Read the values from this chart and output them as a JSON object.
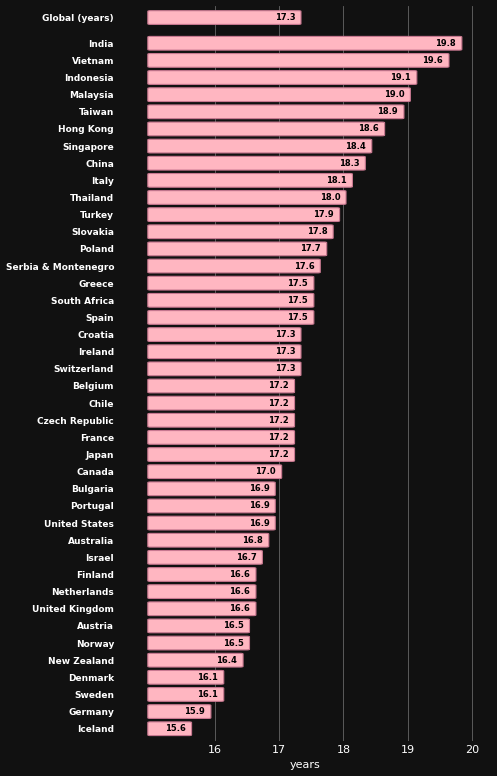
{
  "categories": [
    "Global (years)",
    "India",
    "Vietnam",
    "Indonesia",
    "Malaysia",
    "Taiwan",
    "Hong Kong",
    "Singapore",
    "China",
    "Italy",
    "Thailand",
    "Turkey",
    "Slovakia",
    "Poland",
    "Serbia & Montenegro",
    "Greece",
    "South Africa",
    "Spain",
    "Croatia",
    "Ireland",
    "Switzerland",
    "Belgium",
    "Chile",
    "Czech Republic",
    "France",
    "Japan",
    "Canada",
    "Bulgaria",
    "Portugal",
    "United States",
    "Australia",
    "Israel",
    "Finland",
    "Netherlands",
    "United Kingdom",
    "Austria",
    "Norway",
    "New Zealand",
    "Denmark",
    "Sweden",
    "Germany",
    "Iceland"
  ],
  "values": [
    17.3,
    19.8,
    19.6,
    19.1,
    19.0,
    18.9,
    18.6,
    18.4,
    18.3,
    18.1,
    18.0,
    17.9,
    17.8,
    17.7,
    17.6,
    17.5,
    17.5,
    17.5,
    17.3,
    17.3,
    17.3,
    17.2,
    17.2,
    17.2,
    17.2,
    17.2,
    17.0,
    16.9,
    16.9,
    16.9,
    16.8,
    16.7,
    16.6,
    16.6,
    16.6,
    16.5,
    16.5,
    16.4,
    16.1,
    16.1,
    15.9,
    15.6
  ],
  "bar_color": "#ffb6c1",
  "bar_edge_color": "#c87890",
  "background_color": "#111111",
  "text_color": "#ffffff",
  "label_color": "#000000",
  "xlabel": "years",
  "xmin": 15.0,
  "xmax": 20.3,
  "xticks": [
    16,
    17,
    18,
    19,
    20
  ],
  "bar_height": 0.72,
  "figsize": [
    4.97,
    7.76
  ],
  "dpi": 100,
  "gap_after_global": true
}
